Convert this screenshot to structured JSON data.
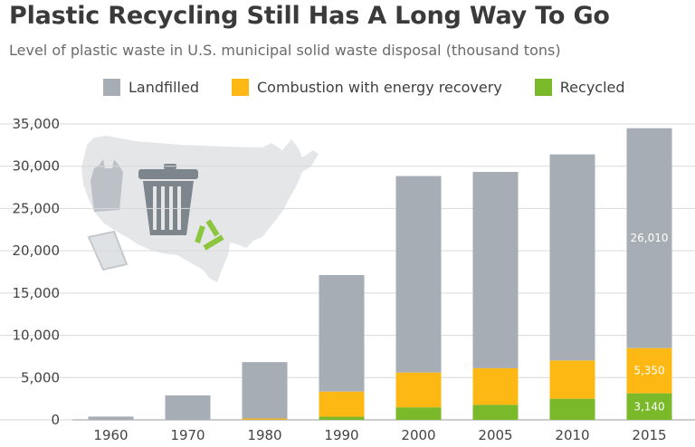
{
  "title": "Plastic Recycling Still Has A Long Way To Go",
  "subtitle": "Level of plastic waste in U.S. municipal solid waste disposal (thousand tons)",
  "colors": {
    "landfilled": "#a6adb4",
    "combustion": "#fdb813",
    "recycled": "#7ab929",
    "grid": "#d9d9d9",
    "map": "#e4e6e8"
  },
  "legend": [
    {
      "key": "landfilled",
      "label": "Landfilled"
    },
    {
      "key": "combustion",
      "label": "Combustion with energy recovery"
    },
    {
      "key": "recycled",
      "label": "Recycled"
    }
  ],
  "illustration_icons": [
    "usa-map-icon",
    "plastic-bag-icon",
    "trash-can-icon",
    "recycle-icon",
    "plastic-cup-icon"
  ],
  "chart_data": {
    "type": "bar",
    "stacked": true,
    "categories": [
      "1960",
      "1970",
      "1980",
      "1990",
      "2000",
      "2005",
      "2010",
      "2015"
    ],
    "series": [
      {
        "name": "Recycled",
        "key": "recycled",
        "values": [
          0,
          0,
          20,
          370,
          1480,
          1780,
          2500,
          3140
        ]
      },
      {
        "name": "Combustion with energy recovery",
        "key": "combustion",
        "values": [
          0,
          0,
          140,
          2980,
          4120,
          4330,
          4530,
          5350
        ]
      },
      {
        "name": "Landfilled",
        "key": "landfilled",
        "values": [
          390,
          2900,
          6670,
          13780,
          23240,
          23220,
          24370,
          26010
        ]
      }
    ],
    "data_labels": [
      {
        "category": "2015",
        "series": "landfilled",
        "text": "26,010"
      },
      {
        "category": "2015",
        "series": "combustion",
        "text": "5,350"
      },
      {
        "category": "2015",
        "series": "recycled",
        "text": "3,140"
      }
    ],
    "ylim": [
      0,
      35000
    ],
    "yticks": [
      0,
      5000,
      10000,
      15000,
      20000,
      25000,
      30000,
      35000
    ],
    "ytick_labels": [
      "0",
      "5,000",
      "10,000",
      "15,000",
      "20,000",
      "25,000",
      "30,000",
      "35,000"
    ],
    "grid": true,
    "legend_position": "top"
  }
}
